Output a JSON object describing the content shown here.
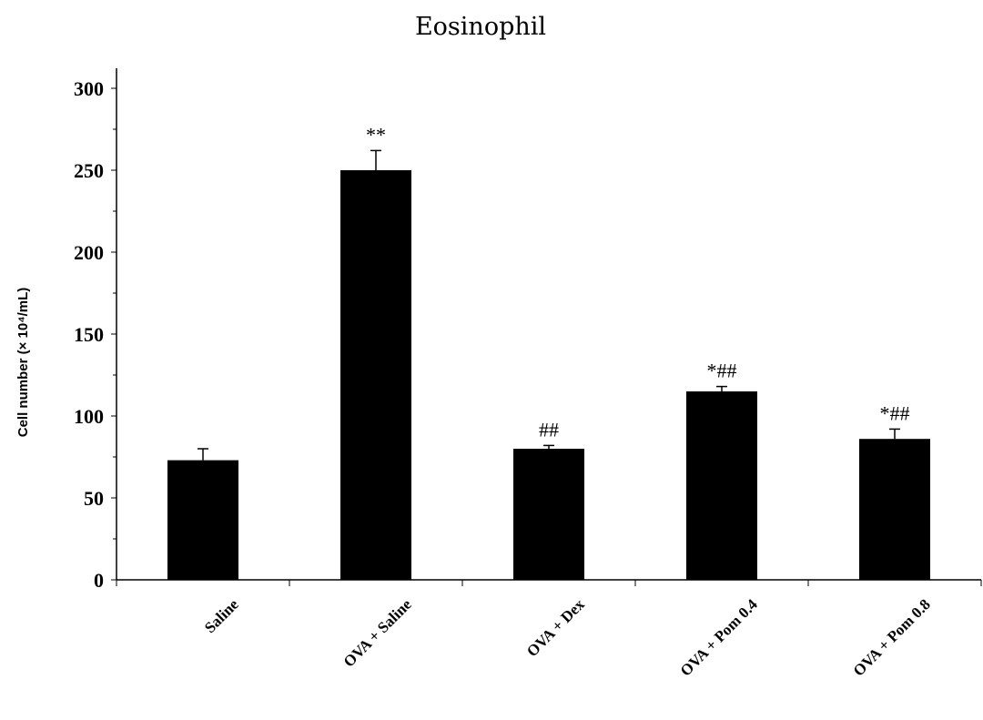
{
  "chart_data": {
    "type": "bar",
    "title": "Eosinophil",
    "xlabel": "",
    "ylabel": "Cell number (× 10⁴/mL)",
    "ylim": [
      0,
      300
    ],
    "yticks": [
      0,
      50,
      100,
      150,
      200,
      250,
      300
    ],
    "grid": false,
    "legend": "none",
    "categories": [
      "Saline",
      "OVA + Saline",
      "OVA + Dex",
      "OVA + Pom 0.4",
      "OVA + Pom 0.8"
    ],
    "values": [
      73,
      250,
      80,
      115,
      86
    ],
    "errors": [
      7,
      12,
      2,
      3,
      6
    ],
    "annotations": [
      "",
      "**",
      "##",
      "*##",
      "*##"
    ],
    "bar_color": "#000000"
  }
}
